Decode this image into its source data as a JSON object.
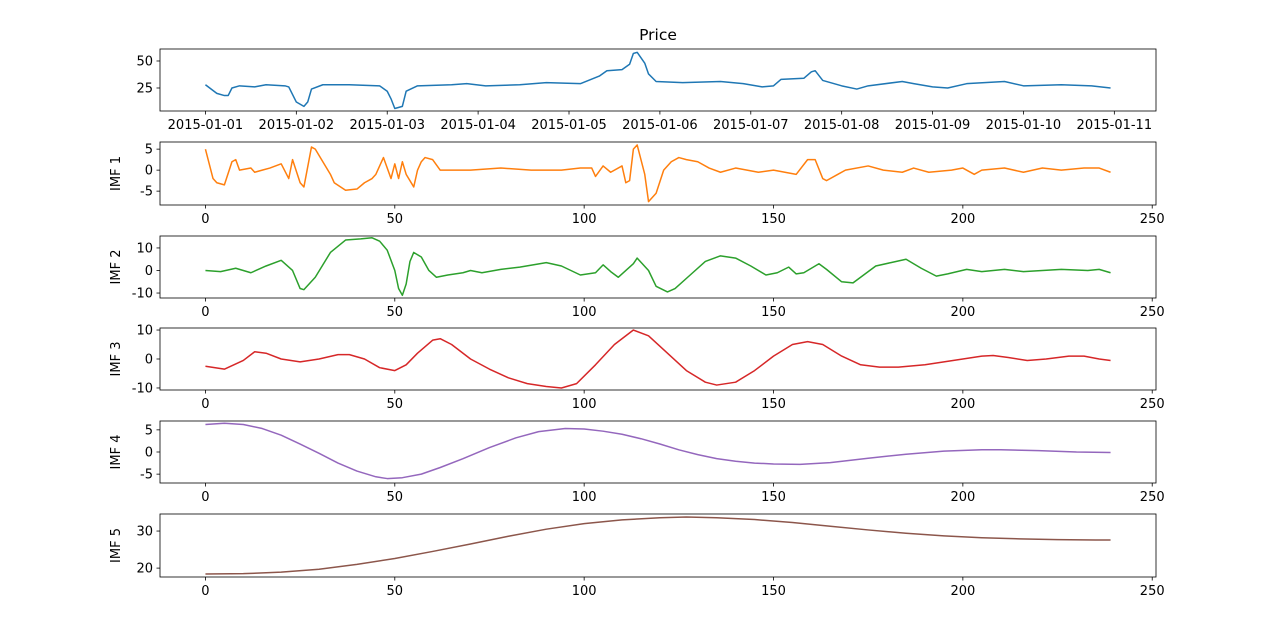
{
  "chart_data": [
    {
      "type": "line",
      "title": "Price",
      "x": [
        0,
        3,
        5,
        6,
        7,
        9,
        13,
        16,
        21,
        22,
        24,
        26,
        27,
        28,
        31,
        38,
        46,
        48,
        49,
        50,
        52,
        53,
        56,
        65,
        69,
        74,
        83,
        90,
        99,
        104,
        106,
        110,
        112,
        113,
        114,
        116,
        117,
        119,
        126,
        136,
        142,
        147,
        150,
        152,
        158,
        160,
        161,
        163,
        168,
        172,
        175,
        184,
        187,
        192,
        196,
        201,
        211,
        216,
        226,
        234,
        239
      ],
      "values": [
        28,
        20,
        18,
        18,
        25,
        27,
        26,
        28,
        27,
        26,
        12,
        8,
        12,
        24,
        28,
        28,
        27,
        22,
        15,
        6,
        8,
        22,
        27,
        28,
        29,
        27,
        28,
        30,
        29,
        36,
        41,
        42,
        47,
        57,
        58,
        48,
        38,
        31,
        30,
        31,
        29,
        26,
        27,
        33,
        34,
        40,
        41,
        32,
        27,
        24,
        27,
        31,
        29,
        26,
        25,
        29,
        31,
        27,
        28,
        27,
        25
      ],
      "color": "#1f77b4",
      "xlim": [
        -12,
        251
      ],
      "xticks": [
        {
          "value": 0,
          "label": "2015-01-01"
        },
        {
          "value": 24,
          "label": "2015-01-02"
        },
        {
          "value": 48,
          "label": "2015-01-03"
        },
        {
          "value": 72,
          "label": "2015-01-04"
        },
        {
          "value": 96,
          "label": "2015-01-05"
        },
        {
          "value": 120,
          "label": "2015-01-06"
        },
        {
          "value": 144,
          "label": "2015-01-07"
        },
        {
          "value": 168,
          "label": "2015-01-08"
        },
        {
          "value": 192,
          "label": "2015-01-09"
        },
        {
          "value": 216,
          "label": "2015-01-10"
        },
        {
          "value": 240,
          "label": "2015-01-11"
        }
      ],
      "ylim": [
        3.7,
        61.1
      ],
      "yticks": [
        25,
        50
      ]
    },
    {
      "type": "line",
      "ylabel": "IMF 1",
      "x": [
        0,
        2,
        3,
        5,
        7,
        8,
        9,
        12,
        13,
        15,
        17,
        20,
        22,
        23,
        25,
        26,
        28,
        29,
        31,
        33,
        34,
        37,
        40,
        42,
        44,
        45,
        46,
        47,
        49,
        50,
        51,
        52,
        53,
        55,
        56,
        57,
        58,
        60,
        62,
        70,
        78,
        86,
        94,
        99,
        102,
        103,
        105,
        107,
        110,
        111,
        112,
        113,
        114,
        116,
        117,
        119,
        121,
        123,
        125,
        127,
        130,
        133,
        136,
        140,
        146,
        150,
        156,
        159,
        161,
        163,
        164,
        167,
        169,
        175,
        179,
        184,
        187,
        191,
        197,
        200,
        203,
        205,
        211,
        216,
        221,
        226,
        232,
        236,
        239
      ],
      "values": [
        5,
        -2,
        -3,
        -3.5,
        2,
        2.5,
        0,
        0.5,
        -0.5,
        0,
        0.5,
        1.5,
        -2,
        2.5,
        -3,
        -4,
        5.5,
        5,
        2,
        -1,
        -3,
        -4.8,
        -4.5,
        -3,
        -2,
        -1,
        1,
        3,
        -2,
        1.5,
        -2,
        2,
        -1,
        -4,
        0,
        2,
        3,
        2.5,
        0,
        0,
        0.5,
        0,
        0,
        0.5,
        0.5,
        -1.5,
        1,
        -0.5,
        1,
        -3,
        -2.5,
        5,
        6,
        -1,
        -7.5,
        -5.5,
        0,
        2,
        3,
        2.5,
        2,
        0.5,
        -0.5,
        0.5,
        -0.5,
        0,
        -1,
        2.5,
        2.5,
        -2,
        -2.5,
        -1,
        0,
        1,
        0,
        -0.5,
        0.5,
        -0.5,
        0,
        0.5,
        -1,
        0,
        0.5,
        -0.5,
        0.5,
        0,
        0.5,
        0.5,
        -0.5
      ],
      "color": "#ff7f0e",
      "xlim": [
        -12,
        251
      ],
      "xticks": [
        0,
        50,
        100,
        150,
        200,
        250
      ],
      "ylim": [
        -8.3,
        6.7
      ],
      "yticks": [
        -5,
        0,
        5
      ]
    },
    {
      "type": "line",
      "ylabel": "IMF 2",
      "x": [
        0,
        4,
        8,
        12,
        16,
        20,
        23,
        25,
        26,
        29,
        33,
        37,
        41,
        44,
        46,
        48,
        50,
        51,
        52,
        53,
        54,
        55,
        57,
        59,
        61,
        64,
        68,
        70,
        73,
        78,
        83,
        90,
        94,
        99,
        103,
        105,
        107,
        109,
        113,
        114,
        117,
        119,
        122,
        124,
        128,
        132,
        136,
        140,
        144,
        148,
        151,
        154,
        156,
        158,
        162,
        164,
        168,
        171,
        173,
        177,
        181,
        185,
        189,
        193,
        196,
        201,
        205,
        211,
        216,
        221,
        226,
        233,
        236,
        239
      ],
      "values": [
        0,
        -0.5,
        1,
        -1,
        2,
        4.5,
        0,
        -8,
        -8.5,
        -3,
        8,
        13.5,
        14,
        14.5,
        13,
        9,
        0,
        -8,
        -11,
        -6,
        4,
        8,
        6,
        0,
        -3,
        -2,
        -1,
        0,
        -1,
        0.5,
        1.5,
        3.5,
        2,
        -2,
        -1,
        2.5,
        -0.5,
        -3,
        3,
        5.5,
        0,
        -7,
        -9.5,
        -8,
        -2,
        4,
        6.5,
        5.5,
        2,
        -2,
        -1,
        1.5,
        -1.5,
        -1,
        3,
        0.5,
        -5,
        -5.5,
        -3,
        2,
        3.5,
        5,
        1,
        -2.5,
        -1.5,
        0.5,
        -0.5,
        0.5,
        -0.5,
        0,
        0.5,
        0,
        0.5,
        -1
      ],
      "color": "#2ca02c",
      "xlim": [
        -12,
        251
      ],
      "xticks": [
        0,
        50,
        100,
        150,
        200,
        250
      ],
      "ylim": [
        -12.2,
        15.3
      ],
      "yticks": [
        -10,
        0,
        10
      ]
    },
    {
      "type": "line",
      "ylabel": "IMF 3",
      "x": [
        0,
        5,
        10,
        13,
        16,
        20,
        25,
        30,
        35,
        38,
        42,
        46,
        50,
        53,
        56,
        60,
        62,
        65,
        70,
        75,
        80,
        85,
        90,
        94,
        98,
        103,
        108,
        113,
        117,
        122,
        127,
        132,
        135,
        140,
        145,
        150,
        155,
        159,
        163,
        168,
        173,
        178,
        183,
        190,
        195,
        200,
        205,
        208,
        212,
        217,
        222,
        228,
        232,
        236,
        239
      ],
      "values": [
        -2.5,
        -3.5,
        -0.5,
        2.5,
        2,
        0,
        -1,
        0,
        1.5,
        1.5,
        0,
        -3,
        -4,
        -2,
        2,
        6.5,
        7,
        5,
        0,
        -3.5,
        -6.5,
        -8.5,
        -9.5,
        -10,
        -8.5,
        -2,
        5,
        10,
        8,
        2,
        -4,
        -8,
        -9,
        -8,
        -4,
        1,
        5,
        6,
        5,
        1,
        -2,
        -2.8,
        -2.8,
        -2,
        -1,
        0,
        1,
        1.2,
        0.5,
        -0.5,
        0,
        1,
        1,
        0,
        -0.5
      ],
      "color": "#d62728",
      "xlim": [
        -12,
        251
      ],
      "xticks": [
        0,
        50,
        100,
        150,
        200,
        250
      ],
      "ylim": [
        -10.7,
        10.7
      ],
      "yticks": [
        -10,
        0,
        10
      ]
    },
    {
      "type": "line",
      "ylabel": "IMF 4",
      "x": [
        0,
        5,
        10,
        15,
        20,
        25,
        30,
        35,
        40,
        45,
        48,
        52,
        57,
        62,
        68,
        75,
        82,
        88,
        95,
        100,
        105,
        110,
        115,
        120,
        125,
        130,
        135,
        140,
        145,
        150,
        157,
        165,
        175,
        185,
        195,
        205,
        210,
        220,
        230,
        239
      ],
      "values": [
        6.2,
        6.5,
        6.2,
        5.3,
        3.8,
        1.8,
        -0.3,
        -2.5,
        -4.3,
        -5.6,
        -6,
        -5.8,
        -5,
        -3.5,
        -1.5,
        1,
        3.2,
        4.6,
        5.3,
        5.2,
        4.7,
        4,
        3,
        1.8,
        0.5,
        -0.6,
        -1.5,
        -2.1,
        -2.5,
        -2.7,
        -2.8,
        -2.4,
        -1.4,
        -0.5,
        0.2,
        0.5,
        0.5,
        0.3,
        0,
        -0.1
      ],
      "color": "#9467bd",
      "xlim": [
        -12,
        251
      ],
      "xticks": [
        0,
        50,
        100,
        150,
        200,
        250
      ],
      "ylim": [
        -7,
        7
      ],
      "yticks": [
        -5,
        0,
        5
      ]
    },
    {
      "type": "line",
      "ylabel": "IMF 5",
      "x": [
        0,
        10,
        20,
        30,
        40,
        50,
        60,
        70,
        80,
        90,
        100,
        110,
        120,
        127,
        135,
        145,
        155,
        165,
        175,
        185,
        195,
        205,
        215,
        225,
        235,
        239
      ],
      "values": [
        18.4,
        18.5,
        18.9,
        19.7,
        21,
        22.6,
        24.5,
        26.5,
        28.6,
        30.5,
        32,
        33,
        33.6,
        33.8,
        33.6,
        33.1,
        32.3,
        31.3,
        30.3,
        29.4,
        28.7,
        28.2,
        27.9,
        27.7,
        27.6,
        27.6
      ],
      "color": "#8c564b",
      "xlim": [
        -12,
        251
      ],
      "xticks": [
        0,
        50,
        100,
        150,
        200,
        250
      ],
      "ylim": [
        17.6,
        34.6
      ],
      "yticks": [
        20,
        30
      ]
    }
  ]
}
